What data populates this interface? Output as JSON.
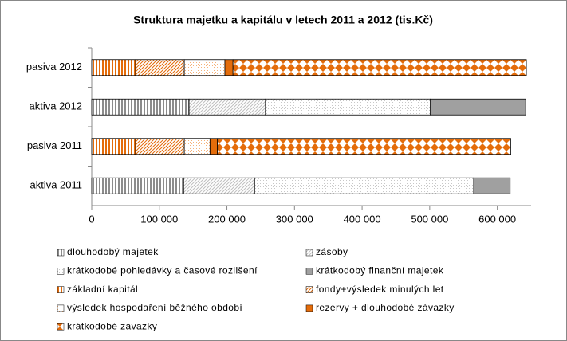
{
  "chart_data": {
    "type": "stacked-bar-horizontal",
    "title": "Struktura majetku a kapitálu v letech 2011 a 2012 (tis.Kč)",
    "categories": [
      "pasiva 2012",
      "aktiva 2012",
      "pasiva 2011",
      "aktiva 2011"
    ],
    "xlim": [
      0,
      650000
    ],
    "xticks": [
      0,
      {
        "value": 100000,
        "label": "100 000"
      },
      {
        "value": 200000,
        "label": "200 000"
      },
      {
        "value": 300000,
        "label": "300 000"
      },
      {
        "value": 400000,
        "label": "400 000"
      },
      {
        "value": 500000,
        "label": "500 000"
      },
      {
        "value": 600000,
        "label": "600 000"
      }
    ],
    "series": [
      {
        "name": "dlouhodobý majetek",
        "color": "#8c8c8c",
        "pattern": "vertical",
        "values": [
          null,
          144000,
          null,
          136000
        ]
      },
      {
        "name": "zásoby",
        "color": "#bfbfbf",
        "pattern": "diagonal",
        "values": [
          null,
          113000,
          null,
          105000
        ]
      },
      {
        "name": "krátkodobé pohledávky a časové rozlišení",
        "color": "#c8c8c8",
        "pattern": "dots",
        "values": [
          null,
          244000,
          null,
          324000
        ]
      },
      {
        "name": "krátkodobý finanční majetek",
        "color": "#a0a0a0",
        "pattern": "solid",
        "values": [
          null,
          141000,
          null,
          54000
        ]
      },
      {
        "name": "základní kapitál",
        "color": "#e46c0a",
        "pattern": "vertical",
        "values": [
          65000,
          null,
          65000,
          null
        ]
      },
      {
        "name": "fondy+výsledek minulých let",
        "color": "#e46c0a",
        "pattern": "diagonal",
        "values": [
          72000,
          null,
          72000,
          null
        ]
      },
      {
        "name": "výsledek hospodaření běžného období",
        "color": "#f5b27a",
        "pattern": "dots",
        "values": [
          60000,
          null,
          38000,
          null
        ]
      },
      {
        "name": "rezervy + dlouhodobé závazky",
        "color": "#e46c0a",
        "pattern": "solid",
        "values": [
          12000,
          null,
          11000,
          null
        ]
      },
      {
        "name": "krátkodobé závazky",
        "color": "#e46c0a",
        "pattern": "diamond",
        "values": [
          434000,
          null,
          434000,
          null
        ]
      }
    ]
  }
}
